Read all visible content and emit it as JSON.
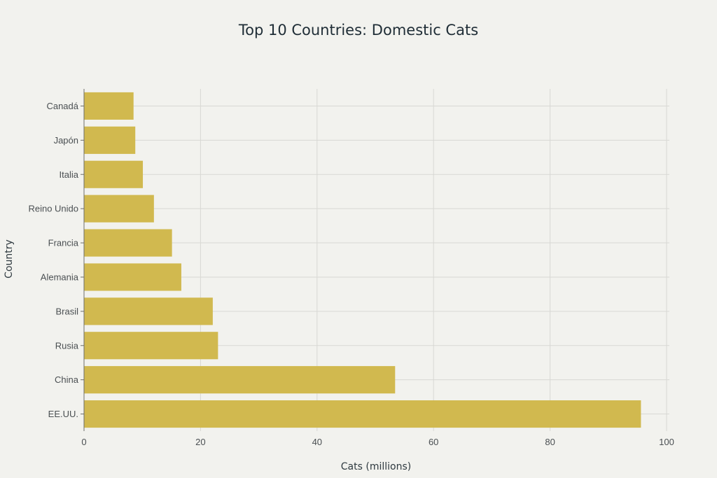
{
  "chart_data": {
    "type": "bar",
    "orientation": "horizontal",
    "title": "Top 10 Countries: Domestic Cats",
    "xlabel": "Cats (millions)",
    "ylabel": "Country",
    "xlim": [
      0,
      100
    ],
    "xticks": [
      0,
      20,
      40,
      60,
      80,
      100
    ],
    "grid": true,
    "categories": [
      "EE.UU.",
      "China",
      "Rusia",
      "Brasil",
      "Alemania",
      "Francia",
      "Reino Unido",
      "Italia",
      "Japón",
      "Canadá"
    ],
    "values": [
      95.6,
      53.4,
      23.0,
      22.1,
      16.7,
      15.1,
      12.0,
      10.1,
      8.8,
      8.5
    ],
    "bar_color": "#d1b94f"
  }
}
